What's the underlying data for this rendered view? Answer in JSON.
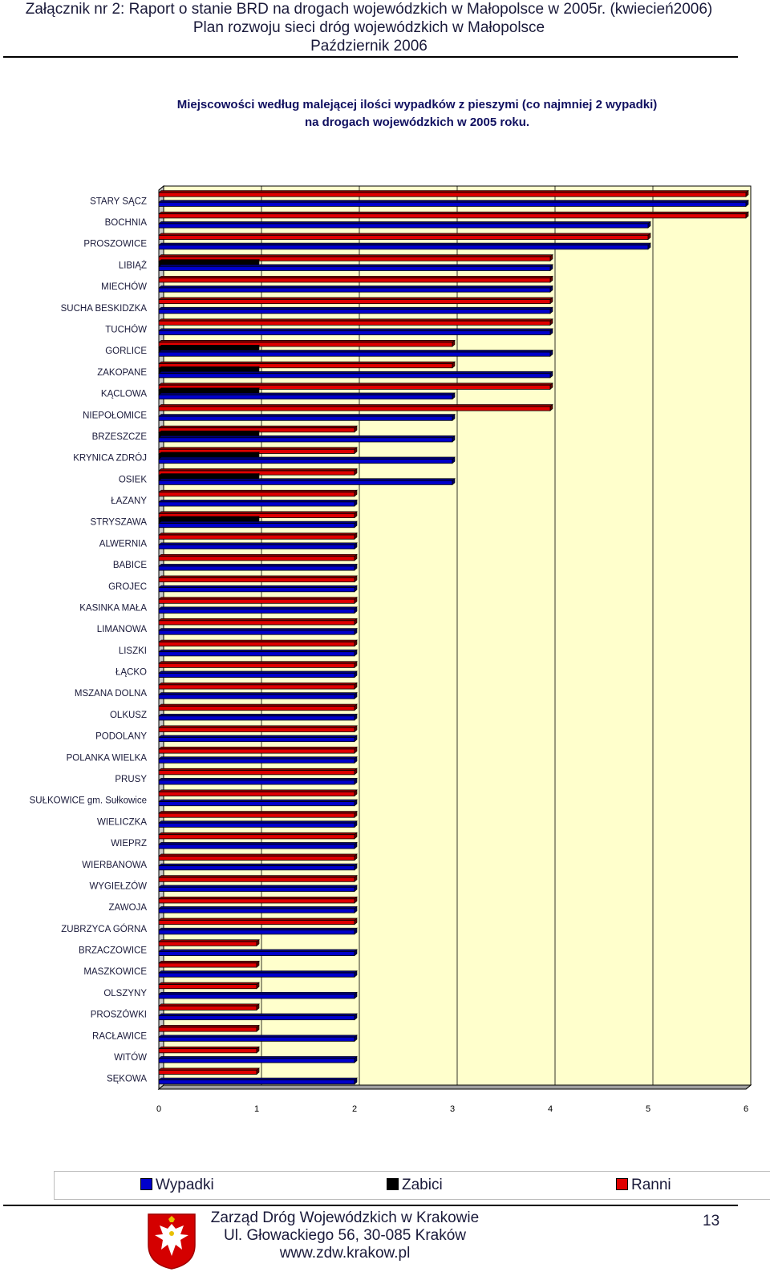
{
  "header": {
    "line1": "Załącznik nr 2: Raport o stanie BRD na drogach wojewódzkich w Małopolsce w 2005r. (kwiecień2006)",
    "line2": "Plan rozwoju sieci dróg wojewódzkich w Małopolsce",
    "line3": "Październik 2006"
  },
  "chart_data": {
    "type": "bar",
    "orientation": "horizontal",
    "title": "Miejscowości według malejącej ilości wypadków z pieszymi (co najmniej 2 wypadki) na drogach wojewódzkich w 2005 roku.",
    "title_line1": "Miejscowości według malejącej ilości wypadków z pieszymi (co najmniej 2 wypadki)",
    "title_line2": "na drogach wojewódzkich w 2005 roku.",
    "categories": [
      "STARY SĄCZ",
      "BOCHNIA",
      "PROSZOWICE",
      "LIBIĄŻ",
      "MIECHÓW",
      "SUCHA BESKIDZKA",
      "TUCHÓW",
      "GORLICE",
      "ZAKOPANE",
      "KĄCLOWA",
      "NIEPOŁOMICE",
      "BRZESZCZE",
      "KRYNICA ZDRÓJ",
      "OSIEK",
      "ŁAZANY",
      "STRYSZAWA",
      "ALWERNIA",
      "BABICE",
      "GROJEC",
      "KASINKA MAŁA",
      "LIMANOWA",
      "LISZKI",
      "ŁĄCKO",
      "MSZANA DOLNA",
      "OLKUSZ",
      "PODOLANY",
      "POLANKA WIELKA",
      "PRUSY",
      "SUŁKOWICE gm. Sułkowice",
      "WIELICZKA",
      "WIEPRZ",
      "WIERBANOWA",
      "WYGIEŁZÓW",
      "ZAWOJA",
      "ZUBRZYCA GÓRNA",
      "BRZACZOWICE",
      "MASZKOWICE",
      "OLSZYNY",
      "PROSZÓWKI",
      "RACŁAWICE",
      "WITÓW",
      "SĘKOWA"
    ],
    "series": [
      {
        "name": "Ranni",
        "color": "#e00000",
        "values": [
          6,
          6,
          5,
          4,
          4,
          4,
          4,
          3,
          3,
          4,
          4,
          2,
          2,
          2,
          2,
          2,
          2,
          2,
          2,
          2,
          2,
          2,
          2,
          2,
          2,
          2,
          2,
          2,
          2,
          2,
          2,
          2,
          2,
          2,
          2,
          1,
          1,
          1,
          1,
          1,
          1,
          1
        ]
      },
      {
        "name": "Zabici",
        "color": "#000000",
        "values": [
          0,
          0,
          0,
          1,
          0,
          0,
          0,
          1,
          1,
          1,
          0,
          1,
          1,
          1,
          0,
          1,
          0,
          0,
          0,
          0,
          0,
          0,
          0,
          0,
          0,
          0,
          0,
          0,
          0,
          0,
          0,
          0,
          0,
          0,
          0,
          0,
          0,
          0,
          0,
          0,
          0,
          0
        ]
      },
      {
        "name": "Wypadki",
        "color": "#0000cc",
        "values": [
          6,
          5,
          5,
          4,
          4,
          4,
          4,
          4,
          4,
          3,
          3,
          3,
          3,
          3,
          2,
          2,
          2,
          2,
          2,
          2,
          2,
          2,
          2,
          2,
          2,
          2,
          2,
          2,
          2,
          2,
          2,
          2,
          2,
          2,
          2,
          2,
          2,
          2,
          2,
          2,
          2,
          2
        ]
      }
    ],
    "xlim": [
      0,
      6
    ],
    "xticks": [
      0,
      1,
      2,
      3,
      4,
      5,
      6
    ],
    "xlabel": "",
    "ylabel": "",
    "grid": "vertical",
    "legend": "bottom",
    "legend_order": [
      "Wypadki",
      "Zabici",
      "Ranni"
    ],
    "plot_background": "#ffffcc"
  },
  "footer": {
    "line1": "Zarząd Dróg Wojewódzkich w Krakowie",
    "line2": "Ul. Głowackiego 56, 30-085 Kraków",
    "line3": "www.zdw.krakow.pl",
    "page": "13"
  }
}
